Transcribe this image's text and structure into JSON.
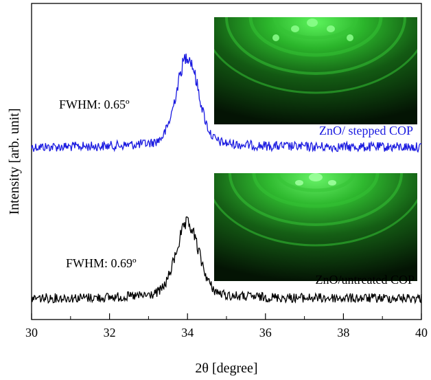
{
  "chart_data": {
    "type": "line",
    "xlabel": "2θ [degree]",
    "ylabel": "Intensity [arb. unit]",
    "xlim": [
      30,
      40
    ],
    "xticks": [
      "30",
      "32",
      "34",
      "36",
      "38",
      "40"
    ],
    "yticks_shown": false,
    "grid": false,
    "series": [
      {
        "name": "ZnO/ stepped COP",
        "color": "#1a1ae0",
        "fwhm_label": "FWHM: 0.65º",
        "baseline": 0.0,
        "peak_center": 34.0,
        "peak_height": 1.0,
        "fwhm_deg": 0.65
      },
      {
        "name": "ZnO/untreated COP",
        "color": "#000000",
        "fwhm_label": "FWHM: 0.69º",
        "baseline": 0.0,
        "peak_center": 34.0,
        "peak_height": 0.78,
        "fwhm_deg": 0.69
      }
    ],
    "insets": [
      {
        "name": "RHEED pattern (stepped COP)",
        "color": "#2ecc40"
      },
      {
        "name": "RHEED pattern (untreated COP)",
        "color": "#2ecc40"
      }
    ]
  }
}
